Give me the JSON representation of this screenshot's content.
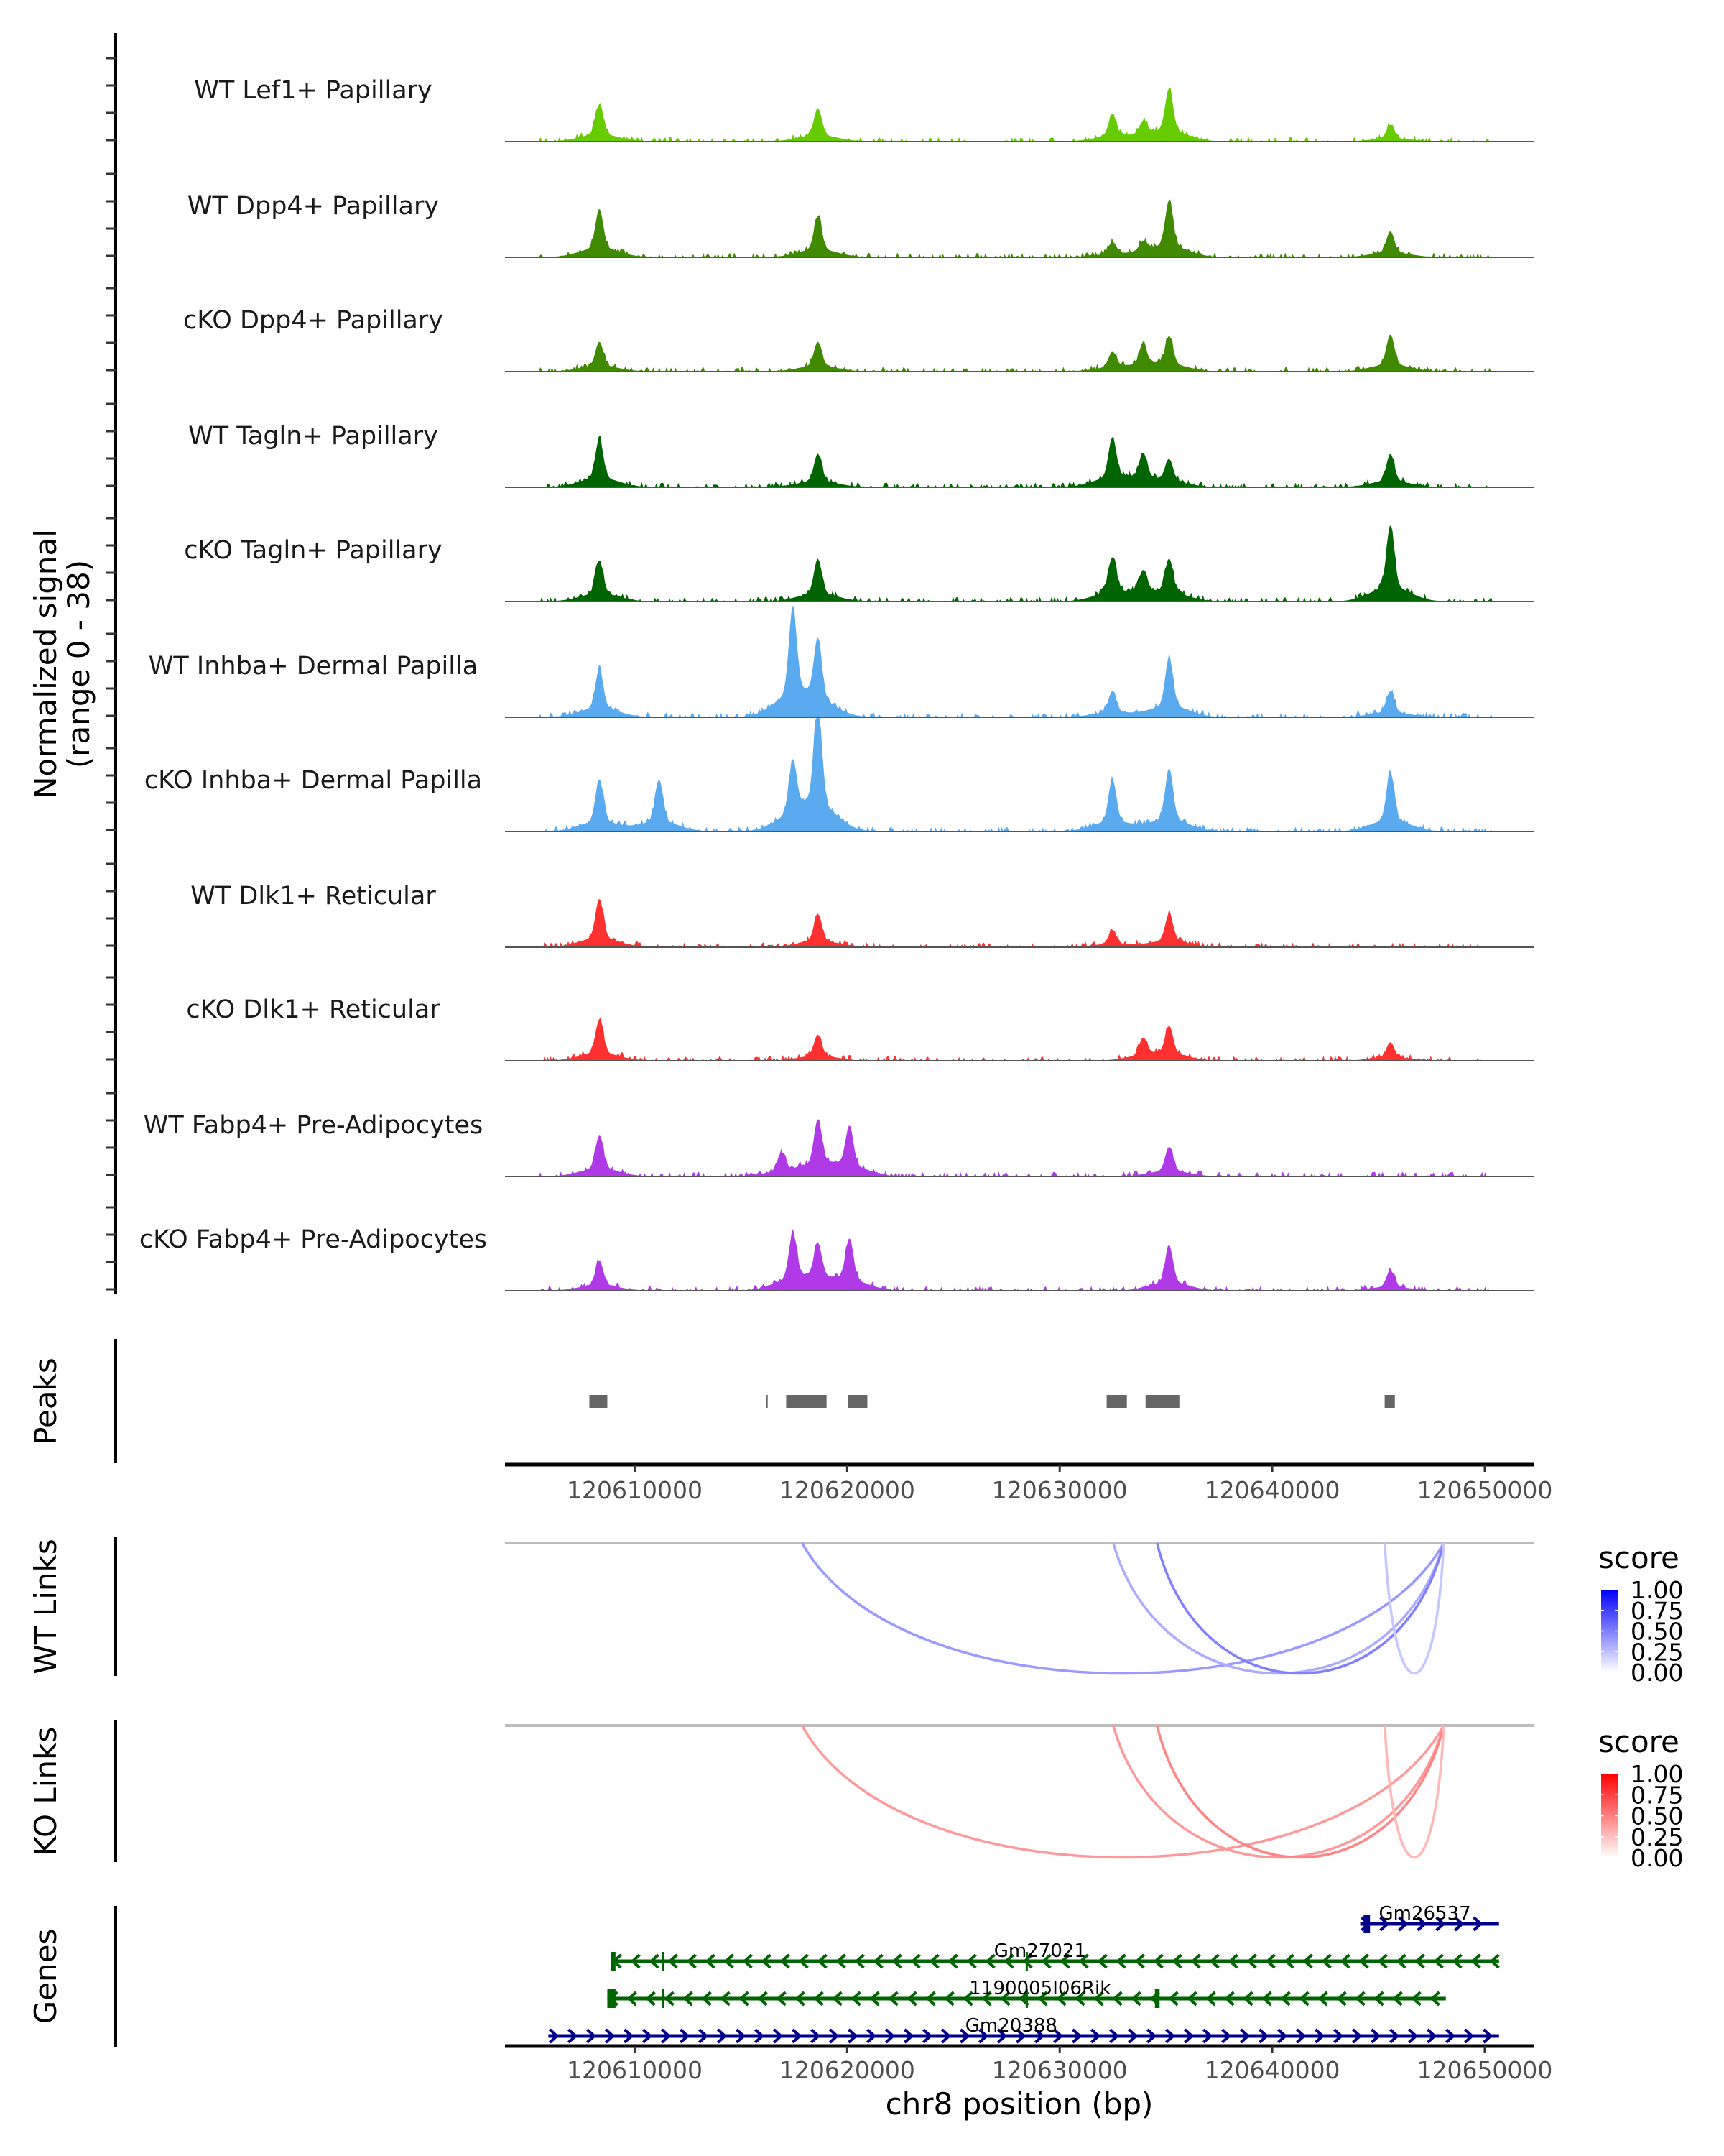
{
  "chart_data": {
    "type": "area",
    "title": "",
    "ylabel": "Normalized signal",
    "ylabel_sub": "(range 0 - 38)",
    "ylim": [
      0,
      38
    ],
    "xlabel": "chr8 position (bp)",
    "xlim": [
      120603900,
      120652300
    ],
    "x_ticks": [
      120610000,
      120620000,
      120630000,
      120640000,
      120650000
    ],
    "x_tick_labels": [
      "120610000",
      "120620000",
      "120630000",
      "120640000",
      "120650000"
    ],
    "tracks": [
      {
        "name": "WT Lef1+ Papillary",
        "color": "#66cc00",
        "peaks": [
          [
            120608340,
            10
          ],
          [
            120618620,
            9
          ],
          [
            120632480,
            7
          ],
          [
            120633930,
            4
          ],
          [
            120635150,
            14
          ],
          [
            120645560,
            4.5
          ]
        ]
      },
      {
        "name": "WT Dpp4+ Papillary",
        "color": "#3f8a00",
        "peaks": [
          [
            120608340,
            13
          ],
          [
            120618620,
            11
          ],
          [
            120632480,
            4
          ],
          [
            120633930,
            3
          ],
          [
            120635150,
            15
          ],
          [
            120645560,
            7
          ]
        ]
      },
      {
        "name": "cKO Dpp4+ Papillary",
        "color": "#3f8a00",
        "peaks": [
          [
            120608340,
            8
          ],
          [
            120618620,
            8
          ],
          [
            120632480,
            5
          ],
          [
            120633930,
            6
          ],
          [
            120635150,
            9
          ],
          [
            120645560,
            10
          ]
        ]
      },
      {
        "name": "WT Tagln+ Papillary",
        "color": "#006400",
        "peaks": [
          [
            120608340,
            13
          ],
          [
            120618620,
            9
          ],
          [
            120632480,
            13
          ],
          [
            120633930,
            8
          ],
          [
            120635150,
            7
          ],
          [
            120645560,
            9
          ]
        ]
      },
      {
        "name": "cKO Tagln+ Papillary",
        "color": "#006400",
        "peaks": [
          [
            120608340,
            11
          ],
          [
            120618620,
            11.5
          ],
          [
            120632480,
            11.5
          ],
          [
            120633930,
            7
          ],
          [
            120635150,
            11
          ],
          [
            120645560,
            20.5
          ]
        ]
      },
      {
        "name": "WT Inhba+ Dermal Papilla",
        "color": "#5aaaf0",
        "peaks": [
          [
            120608340,
            13
          ],
          [
            120617440,
            28
          ],
          [
            120618620,
            19
          ],
          [
            120632480,
            7
          ],
          [
            120635150,
            16
          ],
          [
            120645560,
            7
          ]
        ]
      },
      {
        "name": "cKO Inhba+ Dermal Papilla",
        "color": "#5aaaf0",
        "peaks": [
          [
            120608340,
            14
          ],
          [
            120611150,
            14
          ],
          [
            120617440,
            16.5
          ],
          [
            120618620,
            34
          ],
          [
            120632480,
            14
          ],
          [
            120635150,
            17
          ],
          [
            120645560,
            16
          ]
        ]
      },
      {
        "name": "WT Dlk1+ Reticular",
        "color": "#ff3030",
        "peaks": [
          [
            120608340,
            13
          ],
          [
            120618620,
            9
          ],
          [
            120632480,
            4.5
          ],
          [
            120635150,
            9
          ]
        ]
      },
      {
        "name": "cKO Dlk1+ Reticular",
        "color": "#ff3030",
        "peaks": [
          [
            120608340,
            11
          ],
          [
            120618620,
            7
          ],
          [
            120633930,
            5.5
          ],
          [
            120635150,
            9
          ],
          [
            120645560,
            5
          ]
        ]
      },
      {
        "name": "WT Fabp4+ Pre-Adipocytes",
        "color": "#b03ae8",
        "peaks": [
          [
            120608340,
            11
          ],
          [
            120616900,
            6
          ],
          [
            120618620,
            14.5
          ],
          [
            120620110,
            13
          ],
          [
            120635150,
            8
          ]
        ]
      },
      {
        "name": "cKO Fabp4+ Pre-Adipocytes",
        "color": "#b03ae8",
        "peaks": [
          [
            120608340,
            8
          ],
          [
            120617440,
            14.5
          ],
          [
            120618620,
            11
          ],
          [
            120620110,
            13.5
          ],
          [
            120635150,
            12
          ],
          [
            120645560,
            5.5
          ]
        ]
      }
    ],
    "peaks_track": {
      "title": "Peaks",
      "color": "#666666",
      "regions": [
        [
          120607870,
          120608715
        ],
        [
          120616180,
          120616260
        ],
        [
          120617130,
          120619030
        ],
        [
          120620040,
          120620950
        ],
        [
          120632210,
          120633160
        ],
        [
          120634040,
          120635630
        ],
        [
          120645290,
          120645770
        ]
      ]
    },
    "links": [
      {
        "title": "WT Links",
        "color_high": "#0000ff",
        "color_low": "#ffffff",
        "items": [
          {
            "start": 120617880,
            "end": 120648070,
            "score": 0.4
          },
          {
            "start": 120632520,
            "end": 120648070,
            "score": 0.33
          },
          {
            "start": 120634580,
            "end": 120648070,
            "score": 0.5
          },
          {
            "start": 120645300,
            "end": 120648070,
            "score": 0.22
          }
        ]
      },
      {
        "title": "KO Links",
        "color_high": "#ff0000",
        "color_low": "#ffffff",
        "items": [
          {
            "start": 120617880,
            "end": 120648070,
            "score": 0.4
          },
          {
            "start": 120632520,
            "end": 120648070,
            "score": 0.4
          },
          {
            "start": 120634580,
            "end": 120648070,
            "score": 0.48
          },
          {
            "start": 120645300,
            "end": 120648070,
            "score": 0.28
          }
        ]
      }
    ],
    "legend": {
      "title": "score",
      "labels": [
        "1.00",
        "0.75",
        "0.50",
        "0.25",
        "0.00"
      ],
      "placement": "right"
    },
    "genes": {
      "title": "Genes",
      "items": [
        {
          "name": "Gm26537",
          "start": 120644140,
          "end": 120650670,
          "strand": "+",
          "color": "#00008b",
          "exons": [
            [
              120644300,
              120644600
            ]
          ]
        },
        {
          "name": "Gm27021",
          "start": 120608885,
          "end": 120650670,
          "strand": "-",
          "color": "#006400",
          "exons": [
            [
              120608900,
              120609100
            ],
            [
              120611300,
              120611400
            ],
            [
              120628400,
              120628450
            ]
          ]
        },
        {
          "name": "1190005I06Rik",
          "start": 120608715,
          "end": 120648170,
          "strand": "-",
          "color": "#006400",
          "exons": [
            [
              120608715,
              120609100
            ],
            [
              120611300,
              120611400
            ],
            [
              120634480,
              120634700
            ],
            [
              120628400,
              120628450
            ]
          ]
        },
        {
          "name": "Gm20388",
          "start": 120605940,
          "end": 120650670,
          "strand": "+",
          "color": "#00008b",
          "exons": []
        }
      ]
    }
  }
}
